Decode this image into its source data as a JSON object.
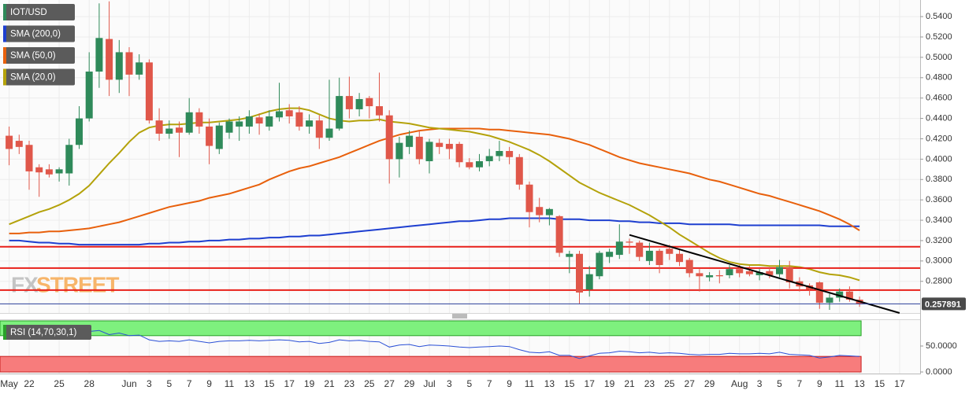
{
  "chart_data": [
    {
      "type": "candlestick",
      "title": "IOT/USD",
      "categories": [
        "May",
        null,
        "22",
        null,
        null,
        "25",
        null,
        null,
        "28",
        null,
        null,
        null,
        "Jun",
        null,
        "3",
        null,
        "5",
        null,
        "7",
        null,
        "9",
        null,
        "11",
        null,
        "13",
        null,
        "15",
        null,
        "17",
        null,
        "19",
        null,
        "21",
        null,
        "23",
        null,
        "25",
        null,
        "27",
        null,
        "29",
        null,
        "Jul",
        null,
        "3",
        null,
        "5",
        null,
        "7",
        null,
        "9",
        null,
        "11",
        null,
        "13",
        null,
        "15",
        null,
        "17",
        null,
        "19",
        null,
        "21",
        null,
        "23",
        null,
        "25",
        null,
        "27",
        null,
        "29",
        null,
        null,
        "Aug",
        null,
        "3",
        null,
        "5",
        null,
        "7",
        null,
        "9",
        null,
        "11",
        null,
        "13",
        null,
        "15",
        null,
        "17"
      ],
      "open": [
        0.423,
        0.418,
        0.414,
        0.392,
        0.39,
        0.386,
        0.386,
        0.414,
        0.44,
        0.486,
        0.518,
        0.478,
        0.505,
        0.483,
        0.495,
        0.438,
        0.425,
        0.431,
        0.426,
        0.446,
        0.432,
        0.41,
        0.426,
        0.432,
        0.432,
        0.441,
        0.432,
        0.441,
        0.448,
        0.446,
        0.432,
        0.438,
        0.421,
        0.43,
        0.462,
        0.449,
        0.46,
        0.452,
        0.443,
        0.4,
        0.412,
        0.422,
        0.398,
        0.416,
        0.415,
        0.415,
        0.397,
        0.392,
        0.398,
        0.403,
        0.408,
        0.402,
        0.375,
        0.353,
        0.345,
        0.344,
        0.304,
        0.307,
        0.272,
        0.285,
        0.304,
        0.306,
        0.319,
        0.318,
        0.3,
        0.31,
        0.312,
        0.307,
        0.301,
        0.288,
        0.284,
        0.286,
        0.286,
        0.292,
        0.29,
        0.286,
        0.29,
        0.287,
        0.294,
        0.28,
        0.276,
        0.279,
        0.259,
        0.264,
        0.27,
        0.262,
        null,
        null,
        null,
        null
      ],
      "high": [
        0.432,
        0.424,
        0.418,
        0.395,
        0.395,
        0.392,
        0.42,
        0.452,
        0.505,
        0.553,
        0.555,
        0.517,
        0.51,
        0.503,
        0.498,
        0.45,
        0.438,
        0.437,
        0.46,
        0.45,
        0.44,
        0.436,
        0.44,
        0.442,
        0.448,
        0.445,
        0.448,
        0.475,
        0.454,
        0.452,
        0.444,
        0.443,
        0.478,
        0.48,
        0.481,
        0.465,
        0.462,
        0.485,
        0.448,
        0.422,
        0.428,
        0.428,
        0.42,
        0.42,
        0.42,
        0.417,
        0.401,
        0.405,
        0.41,
        0.418,
        0.412,
        0.405,
        0.378,
        0.362,
        0.352,
        0.345,
        0.31,
        0.31,
        0.295,
        0.31,
        0.312,
        0.336,
        0.322,
        0.32,
        0.318,
        0.312,
        0.316,
        0.312,
        0.303,
        0.292,
        0.289,
        0.291,
        0.296,
        0.296,
        0.295,
        0.292,
        0.294,
        0.301,
        0.3,
        0.284,
        0.278,
        0.28,
        0.268,
        0.273,
        0.275,
        0.265,
        null,
        null,
        null,
        null
      ],
      "low": [
        0.394,
        0.405,
        0.37,
        0.363,
        0.382,
        0.378,
        0.374,
        0.41,
        0.437,
        0.47,
        0.462,
        0.465,
        0.462,
        0.478,
        0.435,
        0.418,
        0.42,
        0.402,
        0.424,
        0.425,
        0.395,
        0.405,
        0.42,
        0.418,
        0.425,
        0.424,
        0.428,
        0.437,
        0.435,
        0.428,
        0.425,
        0.41,
        0.418,
        0.428,
        0.44,
        0.442,
        0.44,
        0.437,
        0.376,
        0.382,
        0.405,
        0.395,
        0.386,
        0.405,
        0.4,
        0.392,
        0.39,
        0.388,
        0.393,
        0.398,
        0.395,
        0.37,
        0.333,
        0.338,
        0.335,
        0.304,
        0.288,
        0.258,
        0.265,
        0.282,
        0.298,
        0.302,
        0.307,
        0.3,
        0.296,
        0.288,
        0.301,
        0.295,
        0.284,
        0.27,
        0.28,
        0.278,
        0.283,
        0.284,
        0.285,
        0.281,
        0.283,
        0.284,
        0.273,
        0.27,
        0.266,
        0.253,
        0.252,
        0.26,
        0.26,
        0.255,
        null,
        null,
        null,
        null
      ],
      "close": [
        0.41,
        0.412,
        0.388,
        0.387,
        0.385,
        0.39,
        0.414,
        0.44,
        0.486,
        0.519,
        0.478,
        0.505,
        0.483,
        0.495,
        0.438,
        0.425,
        0.43,
        0.426,
        0.446,
        0.432,
        0.413,
        0.433,
        0.437,
        0.437,
        0.442,
        0.435,
        0.442,
        0.447,
        0.442,
        0.432,
        0.438,
        0.421,
        0.43,
        0.462,
        0.449,
        0.459,
        0.452,
        0.443,
        0.4,
        0.416,
        0.423,
        0.4,
        0.417,
        0.412,
        0.41,
        0.397,
        0.392,
        0.398,
        0.403,
        0.408,
        0.402,
        0.375,
        0.348,
        0.345,
        0.351,
        0.308,
        0.307,
        0.269,
        0.287,
        0.308,
        0.309,
        0.319,
        0.318,
        0.304,
        0.31,
        0.296,
        0.307,
        0.299,
        0.288,
        0.285,
        0.286,
        0.285,
        0.292,
        0.288,
        0.287,
        0.289,
        0.286,
        0.294,
        0.279,
        0.275,
        0.272,
        0.259,
        0.264,
        0.27,
        0.262,
        0.257891,
        null,
        null,
        null,
        null
      ],
      "up_color": "#2f8a5a",
      "down_color": "#e0574a",
      "overlays": [
        {
          "name": "SMA (200,0)",
          "color": "#1e3fd0",
          "values": [
            0.32,
            0.32,
            0.319,
            0.318,
            0.318,
            0.317,
            0.317,
            0.316,
            0.316,
            0.316,
            0.316,
            0.316,
            0.316,
            0.316,
            0.317,
            0.317,
            0.318,
            0.318,
            0.319,
            0.319,
            0.32,
            0.32,
            0.321,
            0.321,
            0.322,
            0.322,
            0.323,
            0.323,
            0.324,
            0.324,
            0.325,
            0.325,
            0.326,
            0.327,
            0.328,
            0.329,
            0.33,
            0.331,
            0.332,
            0.333,
            0.334,
            0.335,
            0.336,
            0.337,
            0.338,
            0.339,
            0.339,
            0.34,
            0.341,
            0.341,
            0.342,
            0.342,
            0.342,
            0.342,
            0.342,
            0.341,
            0.341,
            0.341,
            0.34,
            0.34,
            0.34,
            0.339,
            0.339,
            0.338,
            0.338,
            0.337,
            0.337,
            0.337,
            0.336,
            0.336,
            0.336,
            0.336,
            0.336,
            0.335,
            0.335,
            0.335,
            0.335,
            0.335,
            0.335,
            0.335,
            0.335,
            0.335,
            0.334,
            0.334,
            0.334,
            0.334,
            null,
            null,
            null,
            null
          ]
        },
        {
          "name": "SMA (50,0)",
          "color": "#e8600c",
          "values": [
            0.327,
            0.327,
            0.328,
            0.328,
            0.329,
            0.329,
            0.33,
            0.331,
            0.332,
            0.334,
            0.336,
            0.338,
            0.341,
            0.344,
            0.347,
            0.35,
            0.353,
            0.355,
            0.357,
            0.359,
            0.362,
            0.364,
            0.366,
            0.369,
            0.372,
            0.375,
            0.38,
            0.384,
            0.388,
            0.391,
            0.393,
            0.396,
            0.399,
            0.402,
            0.406,
            0.41,
            0.414,
            0.418,
            0.421,
            0.424,
            0.426,
            0.428,
            0.429,
            0.43,
            0.43,
            0.43,
            0.43,
            0.43,
            0.429,
            0.429,
            0.428,
            0.427,
            0.426,
            0.425,
            0.424,
            0.422,
            0.42,
            0.417,
            0.414,
            0.41,
            0.406,
            0.402,
            0.399,
            0.396,
            0.394,
            0.392,
            0.39,
            0.388,
            0.386,
            0.383,
            0.38,
            0.378,
            0.375,
            0.372,
            0.369,
            0.366,
            0.364,
            0.361,
            0.358,
            0.355,
            0.352,
            0.349,
            0.345,
            0.341,
            0.336,
            0.33,
            null,
            null,
            null,
            null
          ]
        },
        {
          "name": "SMA (20,0)",
          "color": "#b4a20a",
          "values": [
            0.336,
            0.34,
            0.344,
            0.348,
            0.351,
            0.355,
            0.36,
            0.366,
            0.374,
            0.385,
            0.396,
            0.406,
            0.417,
            0.426,
            0.431,
            0.433,
            0.434,
            0.434,
            0.435,
            0.436,
            0.436,
            0.437,
            0.438,
            0.439,
            0.441,
            0.444,
            0.447,
            0.449,
            0.45,
            0.45,
            0.448,
            0.444,
            0.44,
            0.438,
            0.437,
            0.438,
            0.438,
            0.439,
            0.437,
            0.436,
            0.435,
            0.433,
            0.431,
            0.43,
            0.429,
            0.428,
            0.427,
            0.425,
            0.423,
            0.42,
            0.417,
            0.413,
            0.409,
            0.404,
            0.398,
            0.391,
            0.384,
            0.377,
            0.372,
            0.367,
            0.363,
            0.359,
            0.355,
            0.35,
            0.345,
            0.339,
            0.333,
            0.326,
            0.32,
            0.314,
            0.308,
            0.303,
            0.299,
            0.297,
            0.296,
            0.296,
            0.295,
            0.295,
            0.295,
            0.294,
            0.292,
            0.289,
            0.287,
            0.286,
            0.284,
            0.281,
            null,
            null,
            null,
            null
          ]
        }
      ],
      "levels": [
        0.314,
        0.293,
        0.2714
      ],
      "level_color": "#e8201a",
      "trendline": {
        "x": [
          62,
          89
        ],
        "values": [
          0.3256,
          0.2489
        ],
        "color": "#000000"
      },
      "last_price": 0.257891,
      "watermark": [
        "FX",
        "STREET"
      ],
      "ylim": [
        0.2489,
        0.5563
      ],
      "yticks": [
        {
          "value": 0.54,
          "label": "0.5400"
        },
        {
          "value": 0.52,
          "label": "0.5200"
        },
        {
          "value": 0.5,
          "label": "0.5000"
        },
        {
          "value": 0.48,
          "label": "0.4800"
        },
        {
          "value": 0.46,
          "label": "0.4600"
        },
        {
          "value": 0.44,
          "label": "0.4400"
        },
        {
          "value": 0.42,
          "label": "0.4200"
        },
        {
          "value": 0.4,
          "label": "0.4000"
        },
        {
          "value": 0.38,
          "label": "0.3800"
        },
        {
          "value": 0.36,
          "label": "0.3600"
        },
        {
          "value": 0.34,
          "label": "0.3400"
        },
        {
          "value": 0.32,
          "label": "0.3200"
        },
        {
          "value": 0.3,
          "label": "0.3000"
        },
        {
          "value": 0.28,
          "label": "0.2800"
        }
      ],
      "grid": true
    },
    {
      "type": "line",
      "title": "RSI (14,70,30,1)",
      "color": "#2a4fd6",
      "values": [
        72,
        70,
        66,
        65,
        65,
        66,
        70,
        74,
        78,
        80,
        72,
        75,
        70,
        71,
        62,
        59,
        60,
        59,
        62,
        59,
        56,
        59,
        60,
        60,
        61,
        60,
        61,
        62,
        61,
        58,
        59,
        55,
        57,
        62,
        60,
        61,
        59,
        58,
        48,
        52,
        53,
        49,
        52,
        51,
        50,
        48,
        47,
        48,
        49,
        50,
        49,
        43,
        38,
        37,
        39,
        32,
        32,
        26,
        31,
        36,
        37,
        40,
        39,
        37,
        38,
        36,
        37,
        36,
        34,
        33,
        34,
        34,
        36,
        35,
        35,
        36,
        35,
        38,
        34,
        33,
        32,
        27,
        29,
        32,
        31,
        30,
        null,
        null,
        null,
        null
      ],
      "bands": [
        30,
        70
      ],
      "ylim": [
        0,
        100
      ],
      "yticks": [
        {
          "value": 50,
          "label": "50.0000"
        },
        {
          "value": 0,
          "label": "0.0000"
        }
      ]
    }
  ]
}
